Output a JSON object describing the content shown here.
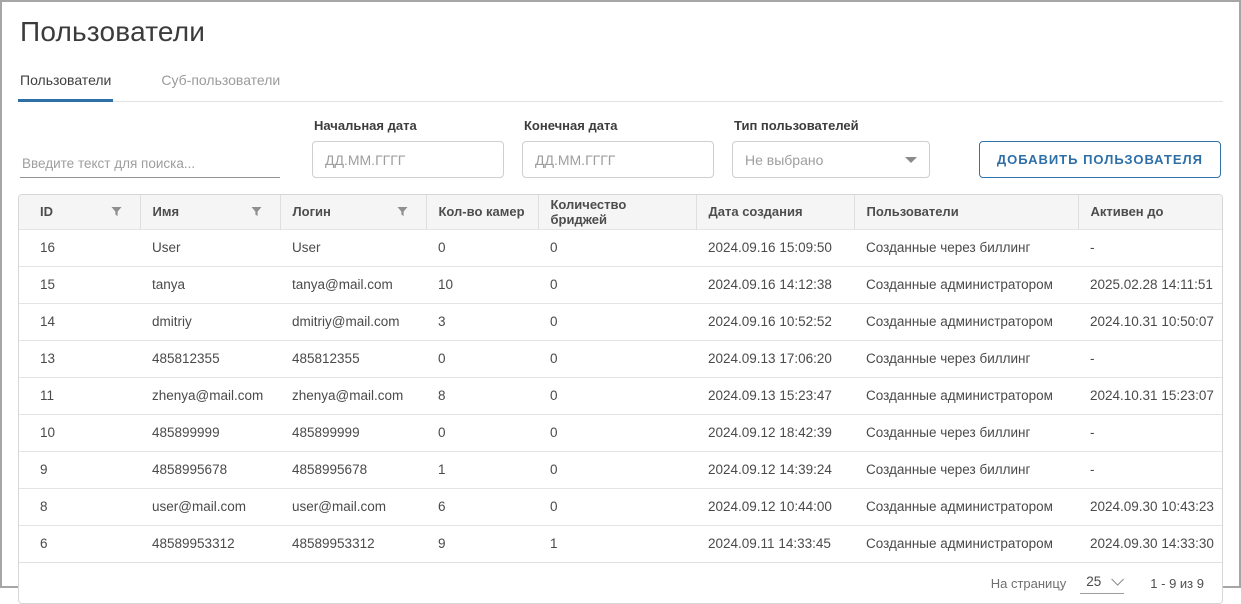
{
  "page": {
    "title": "Пользователи"
  },
  "tabs": [
    {
      "label": "Пользователи",
      "active": true
    },
    {
      "label": "Суб-пользователи",
      "active": false
    }
  ],
  "filters": {
    "search": {
      "placeholder": "Введите текст для поиска..."
    },
    "start_date": {
      "label": "Начальная дата",
      "placeholder": "ДД.ММ.ГГГГ"
    },
    "end_date": {
      "label": "Конечная дата",
      "placeholder": "ДД.ММ.ГГГГ"
    },
    "user_type": {
      "label": "Тип пользователей",
      "value": "Не выбрано"
    }
  },
  "toolbar": {
    "add_user_label": "ДОБАВИТЬ ПОЛЬЗОВАТЕЛЯ"
  },
  "table": {
    "columns": [
      {
        "key": "id",
        "label": "ID",
        "filter": true
      },
      {
        "key": "name",
        "label": "Имя",
        "filter": true
      },
      {
        "key": "login",
        "label": "Логин",
        "filter": true
      },
      {
        "key": "cameras",
        "label": "Кол-во камер",
        "filter": false
      },
      {
        "key": "bridges",
        "label": "Количество бриджей",
        "filter": false
      },
      {
        "key": "created",
        "label": "Дата создания",
        "filter": false
      },
      {
        "key": "users",
        "label": "Пользователи",
        "filter": false
      },
      {
        "key": "active_until",
        "label": "Активен до",
        "filter": false
      }
    ],
    "rows": [
      {
        "id": "16",
        "name": "User",
        "login": "User",
        "cameras": "0",
        "bridges": "0",
        "created": "2024.09.16 15:09:50",
        "users": "Созданные через биллинг",
        "active_until": "-"
      },
      {
        "id": "15",
        "name": "tanya",
        "login": "tanya@mail.com",
        "cameras": "10",
        "bridges": "0",
        "created": "2024.09.16 14:12:38",
        "users": "Созданные администратором",
        "active_until": "2025.02.28 14:11:51"
      },
      {
        "id": "14",
        "name": "dmitriy",
        "login": "dmitriy@mail.com",
        "cameras": "3",
        "bridges": "0",
        "created": "2024.09.16 10:52:52",
        "users": "Созданные администратором",
        "active_until": "2024.10.31 10:50:07"
      },
      {
        "id": "13",
        "name": "485812355",
        "login": "485812355",
        "cameras": "0",
        "bridges": "0",
        "created": "2024.09.13 17:06:20",
        "users": "Созданные через биллинг",
        "active_until": "-"
      },
      {
        "id": "11",
        "name": "zhenya@mail.com",
        "login": "zhenya@mail.com",
        "cameras": "8",
        "bridges": "0",
        "created": "2024.09.13 15:23:47",
        "users": "Созданные администратором",
        "active_until": "2024.10.31 15:23:07"
      },
      {
        "id": "10",
        "name": "485899999",
        "login": "485899999",
        "cameras": "0",
        "bridges": "0",
        "created": "2024.09.12 18:42:39",
        "users": "Созданные через биллинг",
        "active_until": "-"
      },
      {
        "id": "9",
        "name": "4858995678",
        "login": "4858995678",
        "cameras": "1",
        "bridges": "0",
        "created": "2024.09.12 14:39:24",
        "users": "Созданные через биллинг",
        "active_until": "-"
      },
      {
        "id": "8",
        "name": "user@mail.com",
        "login": "user@mail.com",
        "cameras": "6",
        "bridges": "0",
        "created": "2024.09.12 10:44:00",
        "users": "Созданные администратором",
        "active_until": "2024.09.30 10:43:23"
      },
      {
        "id": "6",
        "name": "48589953312",
        "login": "48589953312",
        "cameras": "9",
        "bridges": "1",
        "created": "2024.09.11 14:33:45",
        "users": "Созданные администратором",
        "active_until": "2024.09.30 14:33:30"
      }
    ]
  },
  "pagination": {
    "per_page_label": "На страницу",
    "page_size": "25",
    "range": "1 - 9 из 9"
  },
  "colors": {
    "accent_blue": "#2e6fa8",
    "header_bg": "#f5f5f5",
    "border_gray": "#d7d7d7",
    "text_dark": "#4a4a4a",
    "placeholder_gray": "#9e9e9e"
  }
}
